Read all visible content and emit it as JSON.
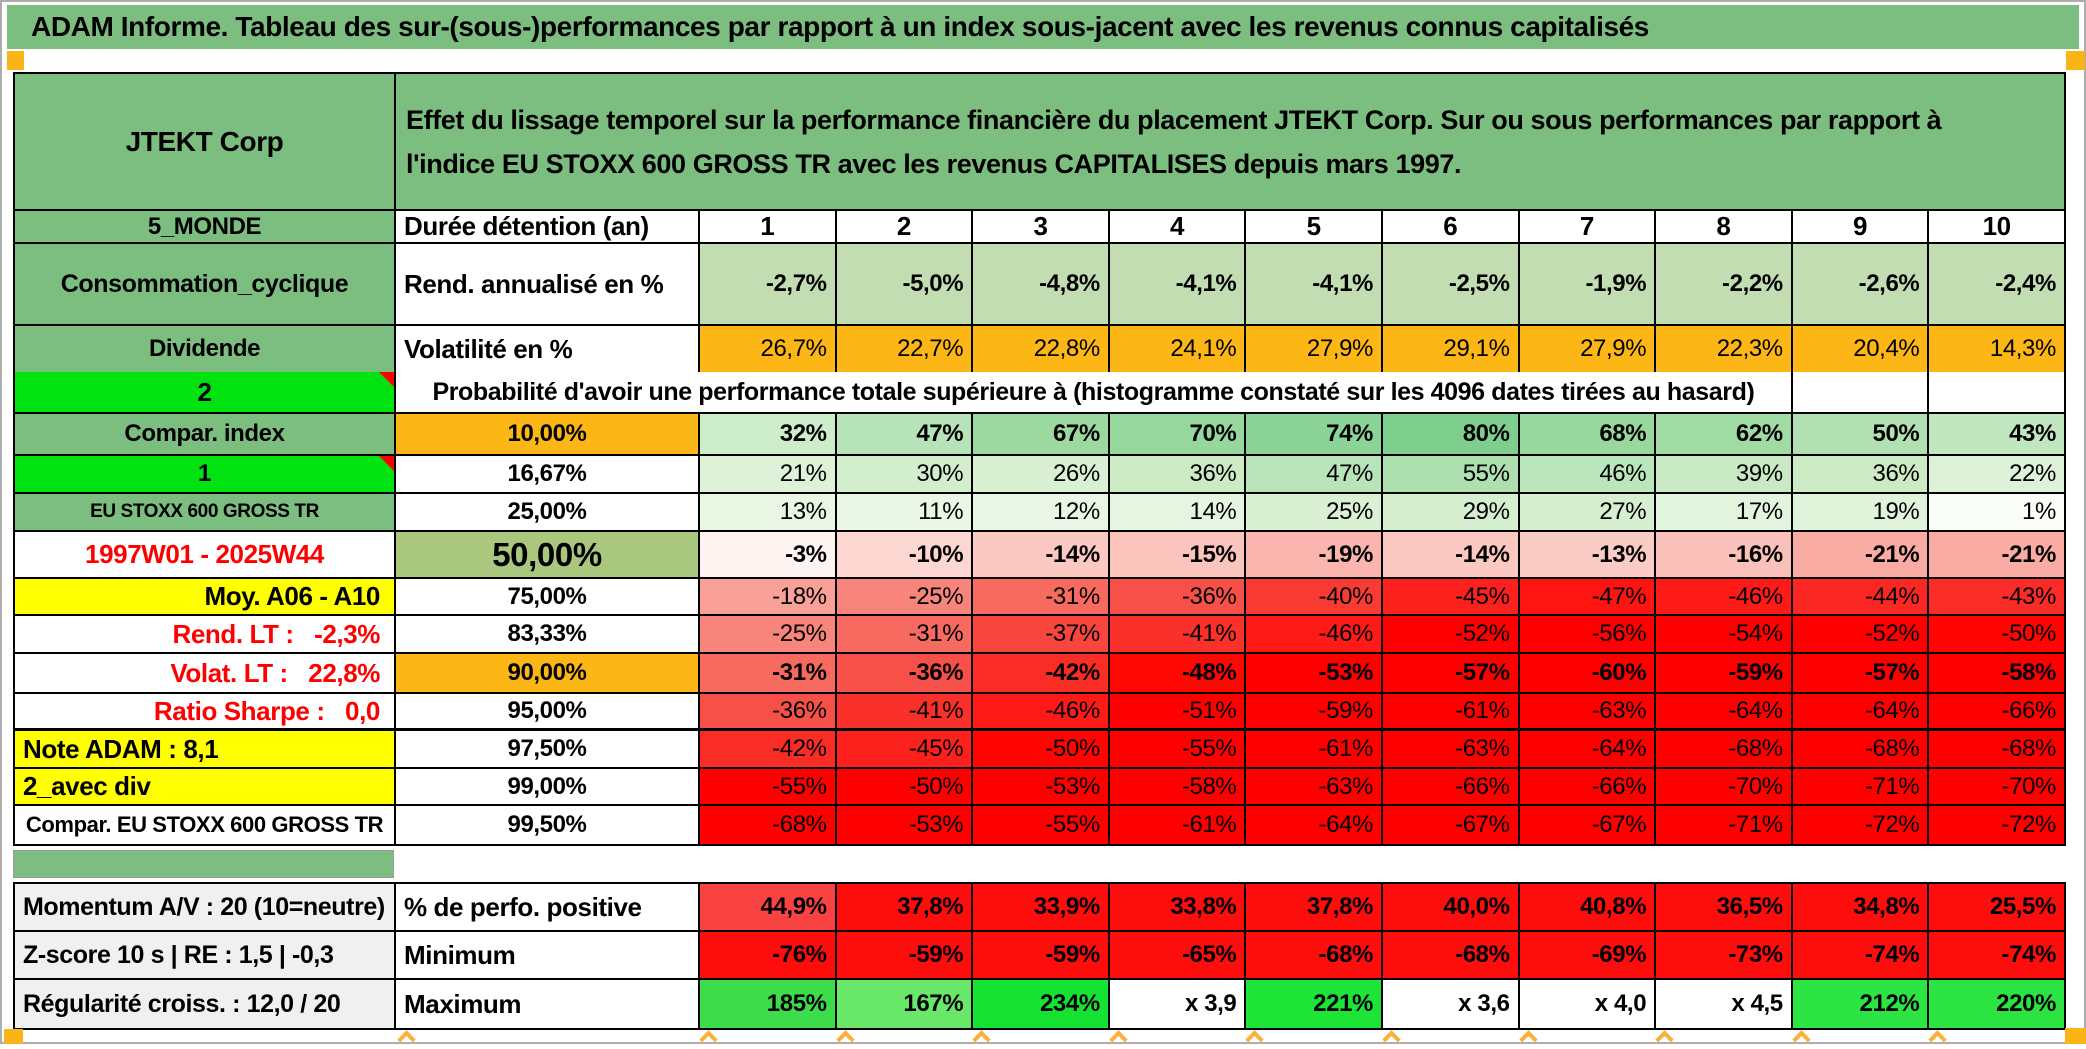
{
  "title": "ADAM Informe. Tableau des sur-(sous-)performances par rapport à un index sous-jacent avec les revenus connus capitalisés",
  "header": {
    "company": "JTEKT Corp",
    "description": "Effet du lissage temporel sur la performance financière du placement JTEKT Corp. Sur ou sous performances par rapport à l'indice EU STOXX 600 GROSS TR avec les revenus CAPITALISES depuis mars 1997."
  },
  "info_rows": [
    {
      "label": "5_MONDE",
      "metric": "Durée détention (an)",
      "values": [
        "1",
        "2",
        "3",
        "4",
        "5",
        "6",
        "7",
        "8",
        "9",
        "10"
      ],
      "values_bg": "#ffffff"
    },
    {
      "label": "Consommation_cyclique",
      "metric": "Rend. annualisé en %",
      "values": [
        "-2,7%",
        "-5,0%",
        "-4,8%",
        "-4,1%",
        "-4,1%",
        "-2,5%",
        "-1,9%",
        "-2,2%",
        "-2,6%",
        "-2,4%"
      ],
      "values_bg": "#c3ddb3"
    },
    {
      "label": "Dividende",
      "metric": "Volatilité en %",
      "values": [
        "26,7%",
        "22,7%",
        "22,8%",
        "24,1%",
        "27,9%",
        "29,1%",
        "27,9%",
        "22,3%",
        "20,4%",
        "14,3%"
      ],
      "values_bg": "#fcb615"
    }
  ],
  "probability": {
    "corner_value": "2",
    "header": "Probabilité d'avoir une performance totale supérieure à (histogramme constaté sur les 4096 dates tirées au hasard)",
    "rows": [
      {
        "label": "Compar. index",
        "label_bg": "#7cbe80",
        "label_color": "#000000",
        "label_align": "center",
        "flag": false,
        "threshold": "10,00%",
        "threshold_bg": "#fcb615",
        "big": false,
        "bold": true,
        "values": [
          "32%",
          "47%",
          "67%",
          "70%",
          "74%",
          "80%",
          "68%",
          "62%",
          "50%",
          "43%"
        ],
        "colors": [
          "#cdecca",
          "#b6e3b7",
          "#9bd9a0",
          "#95d79d",
          "#8bd396",
          "#7ecf8e",
          "#98d89e",
          "#a1dba4",
          "#b1e1b2",
          "#c1e7c0"
        ]
      },
      {
        "label": "1",
        "label_bg": "#00e311",
        "label_color": "#000000",
        "label_align": "center",
        "flag": true,
        "threshold": "16,67%",
        "threshold_bg": "#ffffff",
        "big": false,
        "bold": false,
        "values": [
          "21%",
          "30%",
          "26%",
          "36%",
          "47%",
          "55%",
          "46%",
          "39%",
          "36%",
          "22%"
        ],
        "colors": [
          "#def2d9",
          "#d3eecd",
          "#d9f0d3",
          "#ccebc5",
          "#b9e4b9",
          "#addfaf",
          "#bbe5bb",
          "#c8e9c3",
          "#ccebc5",
          "#ddf2d8"
        ]
      },
      {
        "label": "EU STOXX 600 GROSS TR",
        "label_bg": "#7cbe80",
        "label_color": "#000000",
        "label_align": "center",
        "label_size": "19px",
        "flag": false,
        "threshold": "25,00%",
        "threshold_bg": "#ffffff",
        "big": false,
        "bold": false,
        "values": [
          "13%",
          "11%",
          "12%",
          "14%",
          "25%",
          "29%",
          "27%",
          "17%",
          "19%",
          "1%"
        ],
        "colors": [
          "#e8f6e3",
          "#ebf7e6",
          "#e9f6e5",
          "#e6f5e1",
          "#d9f0d3",
          "#d4eece",
          "#d7efd1",
          "#e3f4de",
          "#e0f3db",
          "#fafdf8"
        ]
      },
      {
        "label": "1997W01 - 2025W44",
        "label_bg": "#ffffff",
        "label_color": "#ff0000",
        "label_align": "center",
        "label_size": "26px",
        "flag": false,
        "threshold": "50,00%",
        "threshold_bg": "#a9c87e",
        "big": true,
        "bold": true,
        "values": [
          "-3%",
          "-10%",
          "-14%",
          "-15%",
          "-19%",
          "-14%",
          "-13%",
          "-16%",
          "-21%",
          "-21%"
        ],
        "colors": [
          "#fdf3f1",
          "#fcd7d2",
          "#fbc8c2",
          "#fbc5be",
          "#fab6ae",
          "#fbc8c2",
          "#fbccc6",
          "#fac1ba",
          "#f9aca3",
          "#f9aca3"
        ]
      },
      {
        "label": "Moy. A06 - A10",
        "label_bg": "#ffff00",
        "label_color": "#000000",
        "label_align": "right",
        "label_size": "26px",
        "flag": false,
        "threshold": "75,00%",
        "threshold_bg": "#ffffff",
        "big": false,
        "bold": false,
        "values": [
          "-18%",
          "-25%",
          "-31%",
          "-36%",
          "-40%",
          "-45%",
          "-47%",
          "-46%",
          "-44%",
          "-43%"
        ],
        "colors": [
          "#f9a198",
          "#f8857b",
          "#f66a60",
          "#f75048",
          "#f93b34",
          "#fc211d",
          "#fe1512",
          "#fd1a17",
          "#fb2722",
          "#fa2c27"
        ]
      },
      {
        "label": "Rend. LT :   -2,3%",
        "label_bg": "#ffffff",
        "label_color": "#ff0000",
        "label_align": "right",
        "label_size": "26px",
        "flag": false,
        "threshold": "83,33%",
        "threshold_bg": "#ffffff",
        "big": false,
        "bold": false,
        "values": [
          "-25%",
          "-31%",
          "-37%",
          "-41%",
          "-46%",
          "-52%",
          "-56%",
          "-54%",
          "-52%",
          "-50%"
        ],
        "colors": [
          "#f8857b",
          "#f66a60",
          "#f8463e",
          "#fa312a",
          "#fd1a17",
          "#ff0000",
          "#ff0000",
          "#ff0000",
          "#ff0000",
          "#ff0400"
        ]
      },
      {
        "label": "Volat. LT :   22,8%",
        "label_bg": "#ffffff",
        "label_color": "#ff0000",
        "label_align": "right",
        "label_size": "26px",
        "flag": false,
        "threshold": "90,00%",
        "threshold_bg": "#fcb615",
        "big": false,
        "bold": true,
        "values": [
          "-31%",
          "-36%",
          "-42%",
          "-48%",
          "-53%",
          "-57%",
          "-60%",
          "-59%",
          "-57%",
          "-58%"
        ],
        "colors": [
          "#f66a60",
          "#f75048",
          "#f92c26",
          "#ff0703",
          "#ff0000",
          "#ff0000",
          "#ff0000",
          "#ff0000",
          "#ff0000",
          "#ff0000"
        ]
      },
      {
        "label": "Ratio Sharpe :   0,0",
        "label_bg": "#ffffff",
        "label_color": "#ff0000",
        "label_align": "right",
        "label_size": "26px",
        "flag": false,
        "threshold": "95,00%",
        "threshold_bg": "#ffffff",
        "big": false,
        "bold": false,
        "thick": true,
        "values": [
          "-36%",
          "-41%",
          "-46%",
          "-51%",
          "-59%",
          "-61%",
          "-63%",
          "-64%",
          "-64%",
          "-66%"
        ],
        "colors": [
          "#f75048",
          "#fa312a",
          "#fd1a17",
          "#ff0000",
          "#ff0000",
          "#ff0000",
          "#ff0000",
          "#ff0000",
          "#ff0000",
          "#ff0000"
        ]
      },
      {
        "label": "Note ADAM : 8,1",
        "label_bg": "#ffff00",
        "label_color": "#000000",
        "label_align": "left",
        "label_size": "26px",
        "flag": false,
        "threshold": "97,50%",
        "threshold_bg": "#ffffff",
        "big": false,
        "bold": false,
        "values": [
          "-42%",
          "-45%",
          "-50%",
          "-55%",
          "-61%",
          "-63%",
          "-64%",
          "-68%",
          "-68%",
          "-68%"
        ],
        "colors": [
          "#f92c26",
          "#fc211d",
          "#ff0400",
          "#ff0000",
          "#ff0000",
          "#ff0000",
          "#ff0000",
          "#ff0000",
          "#ff0000",
          "#ff0000"
        ]
      },
      {
        "label": "2_avec div",
        "label_bg": "#ffff00",
        "label_color": "#000000",
        "label_align": "left",
        "label_size": "26px",
        "flag": false,
        "threshold": "99,00%",
        "threshold_bg": "#ffffff",
        "big": false,
        "bold": false,
        "values": [
          "-55%",
          "-50%",
          "-53%",
          "-58%",
          "-63%",
          "-66%",
          "-66%",
          "-70%",
          "-71%",
          "-70%"
        ],
        "colors": [
          "#ff0000",
          "#ff0000",
          "#ff0000",
          "#ff0000",
          "#ff0000",
          "#ff0000",
          "#ff0000",
          "#ff0000",
          "#ff0000",
          "#ff0000"
        ]
      },
      {
        "label": "Compar. EU STOXX 600 GROSS TR",
        "label_bg": "#ffffff",
        "label_color": "#000000",
        "label_align": "center",
        "label_size": "22px",
        "flag": false,
        "threshold": "99,50%",
        "threshold_bg": "#ffffff",
        "big": false,
        "bold": false,
        "values": [
          "-68%",
          "-53%",
          "-55%",
          "-61%",
          "-64%",
          "-67%",
          "-67%",
          "-71%",
          "-72%",
          "-72%"
        ],
        "colors": [
          "#ff0000",
          "#ff0000",
          "#ff0000",
          "#ff0000",
          "#ff0000",
          "#ff0000",
          "#ff0000",
          "#ff0000",
          "#ff0000",
          "#ff0000"
        ]
      }
    ]
  },
  "footer_rows": [
    {
      "label": "Momentum A/V : 20 (10=neutre)",
      "metric": "% de perfo. positive",
      "values": [
        "44,9%",
        "37,8%",
        "33,9%",
        "33,8%",
        "37,8%",
        "40,0%",
        "40,8%",
        "36,5%",
        "34,8%",
        "25,5%"
      ],
      "colors": [
        "#f94343",
        "#fe0d0d",
        "#fe0d0d",
        "#fe0d0d",
        "#fe0d0d",
        "#fe0d0d",
        "#fe0d0d",
        "#fe0d0d",
        "#fe0d0d",
        "#fe0d0d"
      ]
    },
    {
      "label": "Z-score 10 s | RE : 1,5 | -0,3",
      "metric": "Minimum",
      "values": [
        "-76%",
        "-59%",
        "-59%",
        "-65%",
        "-68%",
        "-68%",
        "-69%",
        "-73%",
        "-74%",
        "-74%"
      ],
      "colors": [
        "#fe0d0d",
        "#fe0d0d",
        "#fe0d0d",
        "#fe0d0d",
        "#fe0d0d",
        "#fe0d0d",
        "#fe0d0d",
        "#fe0d0d",
        "#fe0d0d",
        "#fe0d0d"
      ]
    },
    {
      "label": "Régularité croiss. : 12,0 / 20",
      "metric": "Maximum",
      "values": [
        "185%",
        "167%",
        "234%",
        "x 3,9",
        "221%",
        "x 3,6",
        "x 4,0",
        "x 4,5",
        "212%",
        "220%"
      ],
      "colors": [
        "#3cdc4b",
        "#68e768",
        "#16e231",
        "#ffffff",
        "#1ee438",
        "#ffffff",
        "#ffffff",
        "#ffffff",
        "#2ce443",
        "#2be442"
      ]
    }
  ],
  "colors": {
    "header_green": "#7cbe80",
    "bright_green": "#00e311",
    "orange": "#fcb615",
    "yellow": "#ffff00",
    "red_fill": "#ff0000",
    "accent_marker": "#fbb418"
  }
}
